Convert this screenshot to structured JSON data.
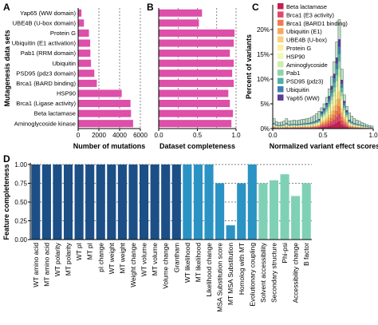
{
  "panels": {
    "A": "A",
    "B": "B",
    "C": "C",
    "D": "D"
  },
  "colors": {
    "pink": "#dd4fa8",
    "navy": "#1c4f86",
    "blue": "#2b93c4",
    "teal": "#7fd1b5",
    "hist_fill": "#b8e3c6",
    "grid": "#555555"
  },
  "chart_data": [
    {
      "panel": "A",
      "type": "bar",
      "orientation": "horizontal",
      "categories": [
        "Yap65 (WW domain)",
        "UBE4B (U-box domain)",
        "Protein G",
        "Ubiquitin (E1 activation)",
        "Pab1 (RRM domain)",
        "Ubiquitin",
        "PSD95 (pdz3 domain)",
        "Brca1 (BARD binding)",
        "HSP90",
        "Brca1 (Ligase activity)",
        "Beta lactamase",
        "Aminoglycoside kinase"
      ],
      "values": [
        320,
        560,
        1040,
        1160,
        1180,
        1240,
        1560,
        1800,
        4200,
        5050,
        5100,
        5300
      ],
      "xlabel": "Number of mutations",
      "ylabel": "Mutagenesis data sets",
      "xlim": [
        0,
        6000
      ],
      "xticks": [
        0,
        2000,
        4000,
        6000
      ],
      "grid": "vertical dashed"
    },
    {
      "panel": "B",
      "type": "bar",
      "orientation": "horizontal",
      "categories": [
        "Yap65 (WW domain)",
        "UBE4B (U-box domain)",
        "Protein G",
        "Ubiquitin (E1 activation)",
        "Pab1 (RRM domain)",
        "Ubiquitin",
        "PSD95 (pdz3 domain)",
        "Brca1 (BARD binding)",
        "HSP90",
        "Brca1 (Ligase activity)",
        "Beta lactamase",
        "Aminoglycoside kinase"
      ],
      "values": [
        0.56,
        0.52,
        0.98,
        0.97,
        0.92,
        0.97,
        0.95,
        0.97,
        0.9,
        0.92,
        0.96,
        0.94
      ],
      "xlabel": "Dataset completeness",
      "xlim": [
        0,
        1
      ],
      "xticks": [
        "0.0",
        "0.5",
        "1.0"
      ],
      "grid": "vertical dashed"
    },
    {
      "panel": "C",
      "type": "area",
      "stacked": true,
      "xlabel": "Normalized variant effect scores",
      "ylabel": "Percent of variants",
      "xlim": [
        0,
        1
      ],
      "ylim": [
        0,
        25
      ],
      "xticks": [
        "0.0",
        "0.5",
        "1.0"
      ],
      "yticks": [
        "0%",
        "5%",
        "10%",
        "15%",
        "20%"
      ],
      "bins_x": [
        0.0,
        0.025,
        0.05,
        0.075,
        0.1,
        0.125,
        0.15,
        0.175,
        0.2,
        0.225,
        0.25,
        0.275,
        0.3,
        0.325,
        0.35,
        0.375,
        0.4,
        0.425,
        0.45,
        0.475,
        0.5,
        0.525,
        0.55,
        0.575,
        0.6,
        0.625,
        0.65,
        0.675,
        0.7,
        0.725,
        0.75,
        0.775,
        0.8,
        0.825,
        0.85,
        0.875,
        0.9,
        0.925,
        0.95,
        0.975
      ],
      "total_percent": [
        2.0,
        1.4,
        1.2,
        1.3,
        1.5,
        2.0,
        1.5,
        1.6,
        1.7,
        1.6,
        1.7,
        1.8,
        1.9,
        2.0,
        2.1,
        2.3,
        2.6,
        3.0,
        3.5,
        4.2,
        5.0,
        6.3,
        8.0,
        10.5,
        13.5,
        17.5,
        22.0,
        12.0,
        6.8,
        4.5,
        3.2,
        2.5,
        2.0,
        1.7,
        1.5,
        1.2,
        1.0,
        0.8,
        0.6,
        0.5
      ],
      "series": [
        {
          "name": "Beta lactamase",
          "color": "#c41f4f"
        },
        {
          "name": "Brca1 (E3 activity)",
          "color": "#e0486a"
        },
        {
          "name": "Brca1 (BARD1 binding)",
          "color": "#f27a4e"
        },
        {
          "name": "Ubiquitin (E1)",
          "color": "#f7a85c"
        },
        {
          "name": "UBE4B (U-box)",
          "color": "#fbd079"
        },
        {
          "name": "Protein G",
          "color": "#fdf0a0"
        },
        {
          "name": "HSP90",
          "color": "#f1f9b4"
        },
        {
          "name": "Aminoglycoside",
          "color": "#cdecae"
        },
        {
          "name": "Pab1",
          "color": "#8fd3a6"
        },
        {
          "name": "PSD95 (pdz3)",
          "color": "#4fb0a8"
        },
        {
          "name": "Ubiquitin",
          "color": "#3f7fb0"
        },
        {
          "name": "Yap65 (WW)",
          "color": "#5a3d94"
        }
      ],
      "legend": "top-right"
    },
    {
      "panel": "D",
      "type": "bar",
      "categories": [
        "WT amino acid",
        "MT amino acid",
        "WT polarity",
        "MT polarity",
        "WT pI",
        "MT pI",
        "pI change",
        "WT weight",
        "MT weight",
        "Weight change",
        "WT volume",
        "MT volume",
        "Volume change",
        "Grantham",
        "WT likelihood",
        "MT likelihood",
        "Likelihood change",
        "MSA Substitution score",
        "MT MSA Substitution",
        "Homolog with MT",
        "Evolutionary coupling",
        "Solvent accessibility",
        "Secondary structure",
        "Phi-psi",
        "Accessibility change",
        "B factor"
      ],
      "values": [
        1.0,
        1.0,
        1.0,
        1.0,
        1.0,
        1.0,
        1.0,
        1.0,
        1.0,
        1.0,
        1.0,
        1.0,
        1.0,
        1.0,
        1.0,
        1.0,
        1.0,
        0.75,
        0.19,
        0.75,
        1.0,
        0.75,
        0.79,
        0.87,
        0.58,
        0.75
      ],
      "bar_colors": [
        "navy",
        "navy",
        "navy",
        "navy",
        "navy",
        "navy",
        "navy",
        "navy",
        "navy",
        "navy",
        "navy",
        "navy",
        "navy",
        "navy",
        "blue",
        "blue",
        "blue",
        "blue",
        "blue",
        "blue",
        "blue",
        "teal",
        "teal",
        "teal",
        "teal",
        "teal"
      ],
      "ylabel": "Feature completeness",
      "ylim": [
        0,
        1
      ],
      "yticks": [
        "0.00",
        "0.25",
        "0.50",
        "0.75",
        "1.00"
      ],
      "grid": "horizontal dashed"
    }
  ]
}
